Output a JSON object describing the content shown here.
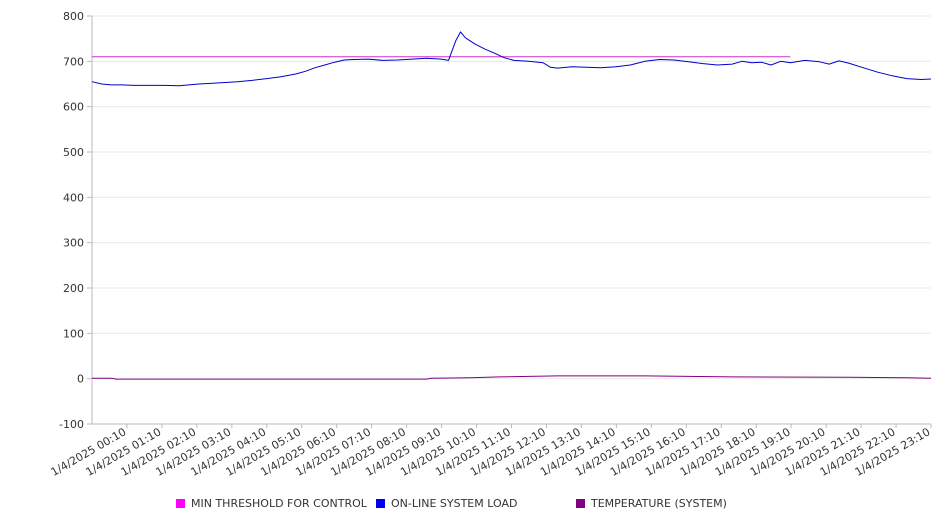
{
  "chart_data": {
    "type": "line",
    "title": "",
    "xlabel": "",
    "ylabel": "",
    "ylim": [
      -100,
      800
    ],
    "y_ticks": [
      "-100",
      "0",
      "100",
      "200",
      "300",
      "400",
      "500",
      "600",
      "700",
      "800"
    ],
    "x_tick_labels": [
      "1/4/2025 00:10",
      "1/4/2025 01:10",
      "1/4/2025 02:10",
      "1/4/2025 03:10",
      "1/4/2025 04:10",
      "1/4/2025 05:10",
      "1/4/2025 06:10",
      "1/4/2025 07:10",
      "1/4/2025 08:10",
      "1/4/2025 09:10",
      "1/4/2025 10:10",
      "1/4/2025 11:10",
      "1/4/2025 12:10",
      "1/4/2025 13:10",
      "1/4/2025 14:10",
      "1/4/2025 15:10",
      "1/4/2025 16:10",
      "1/4/2025 17:10",
      "1/4/2025 18:10",
      "1/4/2025 19:10",
      "1/4/2025 20:10",
      "1/4/2025 21:10",
      "1/4/2025 22:10",
      "1/4/2025 23:10"
    ],
    "x_range": [
      "1/4/2025 00:00",
      "1/4/2025 24:00"
    ],
    "grid": true,
    "legend_position": "bottom",
    "series": [
      {
        "name": "MIN THRESHOLD FOR CONTROL",
        "color": "#cc33cc",
        "points": [
          [
            "00:00",
            710
          ],
          [
            "24:00",
            710
          ]
        ]
      },
      {
        "name": "ON-LINE SYSTEM LOAD",
        "color": "#0000cc",
        "points": [
          [
            "00:00",
            655
          ],
          [
            "00:20",
            650
          ],
          [
            "00:40",
            648
          ],
          [
            "01:00",
            648
          ],
          [
            "01:30",
            647
          ],
          [
            "02:00",
            647
          ],
          [
            "02:30",
            647
          ],
          [
            "03:00",
            646
          ],
          [
            "03:20",
            648
          ],
          [
            "03:40",
            650
          ],
          [
            "04:00",
            651
          ],
          [
            "04:30",
            653
          ],
          [
            "05:00",
            655
          ],
          [
            "05:30",
            658
          ],
          [
            "06:00",
            662
          ],
          [
            "06:30",
            666
          ],
          [
            "07:00",
            672
          ],
          [
            "07:20",
            678
          ],
          [
            "07:40",
            686
          ],
          [
            "08:00",
            692
          ],
          [
            "08:20",
            698
          ],
          [
            "08:40",
            703
          ],
          [
            "09:00",
            704
          ],
          [
            "09:30",
            705
          ],
          [
            "10:00",
            702
          ],
          [
            "10:30",
            703
          ],
          [
            "11:00",
            705
          ],
          [
            "11:30",
            707
          ],
          [
            "12:00",
            705
          ],
          [
            "12:15",
            702
          ],
          [
            "12:30",
            745
          ],
          [
            "12:40",
            765
          ],
          [
            "12:50",
            752
          ],
          [
            "13:10",
            738
          ],
          [
            "13:30",
            727
          ],
          [
            "13:50",
            718
          ],
          [
            "14:10",
            708
          ],
          [
            "14:30",
            702
          ],
          [
            "15:00",
            700
          ],
          [
            "15:30",
            697
          ],
          [
            "15:45",
            687
          ],
          [
            "16:00",
            685
          ],
          [
            "16:30",
            688
          ],
          [
            "17:00",
            687
          ],
          [
            "17:30",
            686
          ],
          [
            "18:00",
            688
          ],
          [
            "18:30",
            692
          ],
          [
            "19:00",
            700
          ],
          [
            "19:30",
            704
          ],
          [
            "20:00",
            703
          ],
          [
            "20:30",
            699
          ],
          [
            "21:00",
            695
          ],
          [
            "21:30",
            692
          ],
          [
            "22:00",
            694
          ],
          [
            "22:20",
            700
          ],
          [
            "22:40",
            697
          ],
          [
            "23:00",
            698
          ],
          [
            "23:20",
            692
          ],
          [
            "23:40",
            700
          ],
          [
            "24:00",
            697
          ],
          [
            "24:30",
            702
          ],
          [
            "25:00",
            699
          ],
          [
            "25:20",
            694
          ],
          [
            "25:40",
            701
          ],
          [
            "26:00",
            696
          ],
          [
            "26:30",
            686
          ],
          [
            "27:00",
            676
          ],
          [
            "27:30",
            668
          ],
          [
            "28:00",
            662
          ],
          [
            "28:30",
            660
          ],
          [
            "28:50",
            661
          ]
        ]
      },
      {
        "name": "TEMPERATURE (SYSTEM)",
        "color": "#800080",
        "points": [
          [
            "00:00",
            1
          ],
          [
            "00:40",
            1
          ],
          [
            "00:50",
            -1
          ],
          [
            "06:00",
            -1
          ],
          [
            "11:30",
            -1
          ],
          [
            "11:40",
            1
          ],
          [
            "13:00",
            2
          ],
          [
            "14:00",
            4
          ],
          [
            "16:00",
            6
          ],
          [
            "19:00",
            6
          ],
          [
            "22:00",
            4
          ],
          [
            "26:00",
            3
          ],
          [
            "28:00",
            2
          ],
          [
            "28:50",
            1
          ]
        ]
      }
    ]
  },
  "legend": {
    "items": [
      {
        "label": "MIN THRESHOLD FOR CONTROL",
        "color": "#ff00ff"
      },
      {
        "label": "ON-LINE SYSTEM LOAD",
        "color": "#0000ee"
      },
      {
        "label": "TEMPERATURE (SYSTEM)",
        "color": "#800080"
      }
    ]
  }
}
